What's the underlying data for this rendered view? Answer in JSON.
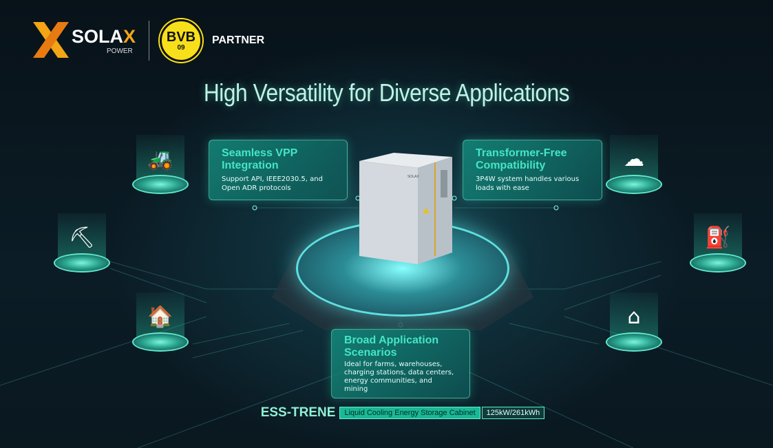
{
  "header": {
    "brand_main": "SOLA",
    "brand_x": "X",
    "brand_sub": "POWER",
    "partner_logo_text": "BVB",
    "partner_logo_number": "09",
    "partner_label": "PARTNER"
  },
  "title": "High Versatility for Diverse Applications",
  "cards": [
    {
      "title": "Seamless VPP Integration",
      "text": "Support API, IEEE2030.5, and Open ADR protocols"
    },
    {
      "title": "Transformer-Free Compatibility",
      "text": "3P4W system handles various loads with ease"
    },
    {
      "title": "Broad Application Scenarios",
      "text": "Ideal for farms, warehouses, charging stations, data centers, energy communities, and mining"
    }
  ],
  "icons": [
    "farm-tractor-icon",
    "mining-cart-icon",
    "warehouse-icon",
    "cloud-data-center-icon",
    "ev-charging-station-icon",
    "energy-community-house-icon"
  ],
  "product": {
    "name": "ESS-TRENE",
    "description": "Liquid Cooling Energy Storage Cabinet",
    "rating": "125kW/261kWh",
    "cabinet_label": "SOLAX"
  },
  "colors": {
    "accent": "#44e6c4",
    "background": "#07131b",
    "brand_orange": "#f2a516",
    "bvb_yellow": "#f7e01a"
  }
}
